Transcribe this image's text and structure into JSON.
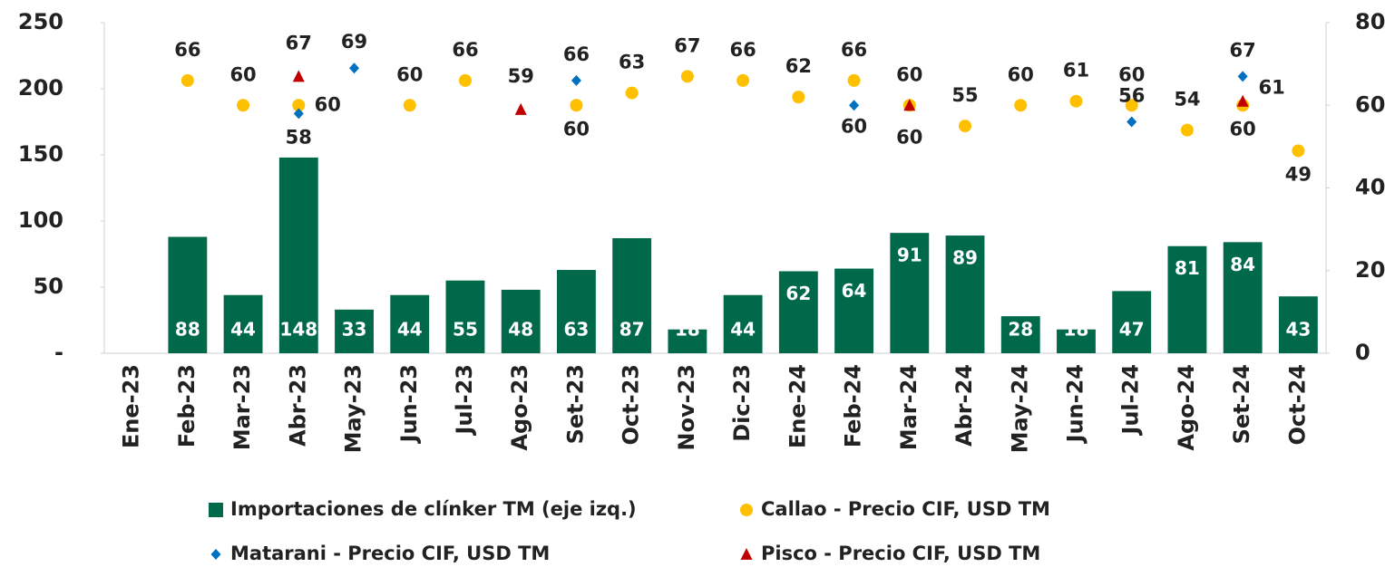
{
  "chart_data": {
    "type": "bar",
    "categories": [
      "Ene-23",
      "Feb-23",
      "Mar-23",
      "Abr-23",
      "May-23",
      "Jun-23",
      "Jul-23",
      "Ago-23",
      "Set-23",
      "Oct-23",
      "Nov-23",
      "Dic-23",
      "Ene-24",
      "Feb-24",
      "Mar-24",
      "Abr-24",
      "May-24",
      "Jun-24",
      "Jul-24",
      "Ago-24",
      "Set-24",
      "Oct-24"
    ],
    "series": [
      {
        "name": "Importaciones de clínker TM (eje izq.)",
        "type": "bar",
        "color": "#00694a",
        "axis": "y",
        "values": [
          null,
          88,
          44,
          148,
          33,
          44,
          55,
          48,
          63,
          87,
          18,
          44,
          62,
          64,
          91,
          89,
          28,
          18,
          47,
          81,
          84,
          43
        ]
      },
      {
        "name": "Callao - Precio CIF, USD TM",
        "type": "scatter",
        "marker": "circle",
        "color": "#ffc000",
        "axis": "y2",
        "values": [
          null,
          66,
          60,
          60,
          null,
          60,
          66,
          null,
          60,
          63,
          67,
          66,
          62,
          66,
          60,
          55,
          60,
          61,
          60,
          54,
          60,
          49
        ]
      },
      {
        "name": "Matarani - Precio CIF, USD TM",
        "type": "scatter",
        "marker": "diamond",
        "color": "#0070c0",
        "axis": "y2",
        "values": [
          null,
          null,
          null,
          58,
          69,
          null,
          null,
          null,
          66,
          null,
          null,
          null,
          null,
          60,
          null,
          null,
          null,
          null,
          56,
          null,
          67,
          null
        ]
      },
      {
        "name": "Pisco - Precio CIF, USD TM",
        "type": "scatter",
        "marker": "triangle",
        "color": "#c00000",
        "axis": "y2",
        "values": [
          null,
          null,
          null,
          67,
          null,
          null,
          null,
          59,
          null,
          null,
          null,
          null,
          null,
          null,
          60,
          null,
          null,
          null,
          null,
          null,
          61,
          null
        ]
      }
    ],
    "ylim": [
      0,
      250
    ],
    "yticks": [
      {
        "value": 0,
        "label": "-"
      },
      50,
      100,
      150,
      200,
      250
    ],
    "y2lim": [
      0,
      80
    ],
    "y2ticks": [
      0,
      20,
      40,
      60,
      80
    ],
    "grid": false
  }
}
